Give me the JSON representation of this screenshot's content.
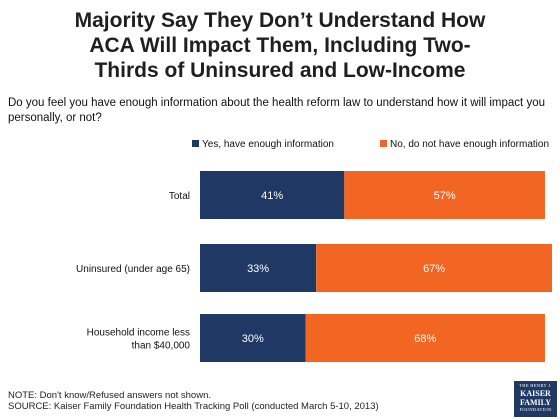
{
  "title_lines": [
    "Majority Say They Don’t Understand How",
    "ACA Will Impact Them, Including Two-",
    "Thirds of Uninsured and Low-Income"
  ],
  "question_lines": [
    "Do you feel you have enough information about the health reform law to understand how it will impact you",
    "personally, or not?"
  ],
  "chart_data": {
    "type": "bar",
    "orientation": "horizontal",
    "stacked": true,
    "categories": [
      [
        "Total"
      ],
      [
        "Uninsured (under age 65)"
      ],
      [
        "Household income less",
        "than $40,000"
      ]
    ],
    "series": [
      {
        "name": "Yes, have enough information",
        "color": "#1f3864",
        "values": [
          41,
          33,
          30
        ],
        "labels": [
          "41%",
          "33%",
          "30%"
        ]
      },
      {
        "name": "No, do not have enough information",
        "color": "#f26522",
        "values": [
          57,
          67,
          68
        ],
        "labels": [
          "57%",
          "67%",
          "68%"
        ]
      }
    ],
    "xlim": [
      0,
      100
    ],
    "legend": "top",
    "grid": false
  },
  "note": "NOTE: Don't know/Refused answers not shown.",
  "source": "SOURCE: Kaiser Family Foundation Health Tracking Poll (conducted March 5-10, 2013)",
  "logo": {
    "line1": "THE HENRY J.",
    "line2a": "KAISER",
    "line2b": "FAMILY",
    "line3": "FOUNDATION"
  }
}
